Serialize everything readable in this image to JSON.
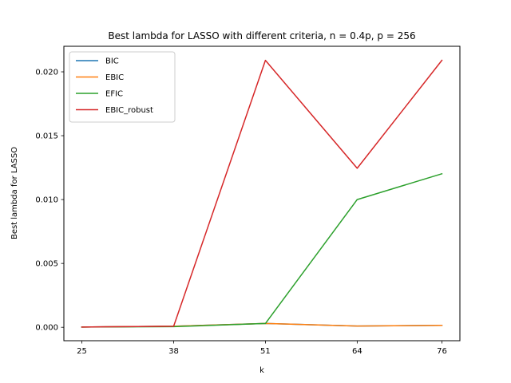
{
  "chart_data": {
    "type": "line",
    "title": "Best lambda for LASSO with different criteria, n = 0.4p, p = 256",
    "xlabel": "k",
    "ylabel": "Best lambda for LASSO",
    "x": [
      25,
      38,
      51,
      64,
      76
    ],
    "x_tick_labels": [
      "25",
      "38",
      "51",
      "64",
      "76"
    ],
    "ylim": [
      -0.00105,
      0.022
    ],
    "y_ticks": [
      0.0,
      0.005,
      0.01,
      0.015,
      0.02
    ],
    "y_tick_labels": [
      "0.000",
      "0.005",
      "0.010",
      "0.015",
      "0.020"
    ],
    "grid": false,
    "legend_position": "top-left",
    "series": [
      {
        "name": "BIC",
        "color": "#1f77b4",
        "values": [
          2e-05,
          8e-05,
          0.0003,
          0.0001,
          0.00015
        ]
      },
      {
        "name": "EBIC",
        "color": "#ff7f0e",
        "values": [
          2e-05,
          8e-05,
          0.0003,
          0.0001,
          0.00015
        ]
      },
      {
        "name": "EFIC",
        "color": "#2ca02c",
        "values": [
          2e-05,
          5e-05,
          0.0003,
          0.01,
          0.01202
        ]
      },
      {
        "name": "EBIC_robust",
        "color": "#d62728",
        "values": [
          2e-05,
          8e-05,
          0.0209,
          0.01245,
          0.0209
        ]
      }
    ]
  }
}
